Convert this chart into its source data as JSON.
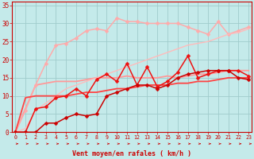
{
  "xlabel": "Vent moyen/en rafales ( km/h )",
  "bg": "#c4eaea",
  "grid_color": "#a0cccc",
  "x_values": [
    0,
    1,
    2,
    3,
    4,
    5,
    6,
    7,
    8,
    9,
    10,
    11,
    12,
    13,
    14,
    15,
    16,
    17,
    18,
    19,
    20,
    21,
    22,
    23
  ],
  "lines": [
    {
      "y": [
        0,
        6.5,
        13,
        13.5,
        14,
        14,
        14,
        14.5,
        15,
        15,
        15,
        15.5,
        15,
        15,
        15,
        15.5,
        15,
        15.5,
        16,
        16,
        16.5,
        17,
        17,
        17
      ],
      "color": "#ff9999",
      "lw": 1.3,
      "marker": null
    },
    {
      "y": [
        0,
        6,
        13,
        19,
        24,
        24.5,
        26,
        28,
        28.5,
        28,
        31.5,
        30.5,
        30.5,
        30,
        30,
        30,
        30,
        29,
        28,
        27,
        30.5,
        27,
        28,
        29
      ],
      "color": "#ffaaaa",
      "lw": 1.1,
      "marker": "D"
    },
    {
      "y": [
        0,
        1,
        6,
        8,
        10,
        12,
        13,
        14,
        15,
        16,
        17,
        18,
        19,
        20,
        21,
        22,
        23,
        24,
        24.5,
        25,
        26,
        27,
        27.5,
        28.5
      ],
      "color": "#ffbbbb",
      "lw": 1.0,
      "marker": null
    },
    {
      "y": [
        0,
        9.5,
        10,
        10,
        10,
        10,
        10.5,
        11,
        11,
        11.5,
        12,
        12,
        12.5,
        13,
        13,
        13,
        13.5,
        13.5,
        14,
        14,
        14.5,
        15,
        15,
        15
      ],
      "color": "#ff4444",
      "lw": 1.3,
      "marker": null
    },
    {
      "y": [
        0,
        0,
        6.5,
        7,
        9.5,
        10,
        12,
        10,
        14.5,
        16,
        14,
        19,
        13,
        18,
        12.5,
        14,
        16.5,
        21,
        15,
        16,
        17,
        17,
        17,
        15.5
      ],
      "color": "#ee1111",
      "lw": 1.1,
      "marker": "D"
    },
    {
      "y": [
        0,
        0,
        0,
        2.5,
        2.5,
        4,
        5,
        4.5,
        5,
        10,
        11,
        12,
        13,
        13,
        12,
        13,
        15,
        16,
        16.5,
        17,
        17,
        17,
        15,
        14.5
      ],
      "color": "#cc0000",
      "lw": 1.1,
      "marker": "D"
    }
  ],
  "xlim": [
    -0.3,
    23.3
  ],
  "ylim": [
    0,
    36
  ],
  "yticks": [
    0,
    5,
    10,
    15,
    20,
    25,
    30,
    35
  ],
  "xticks": [
    0,
    1,
    2,
    3,
    4,
    5,
    6,
    7,
    8,
    9,
    10,
    11,
    12,
    13,
    14,
    15,
    16,
    17,
    18,
    19,
    20,
    21,
    22,
    23
  ],
  "tick_color": "#cc0000",
  "ms": 2.5
}
